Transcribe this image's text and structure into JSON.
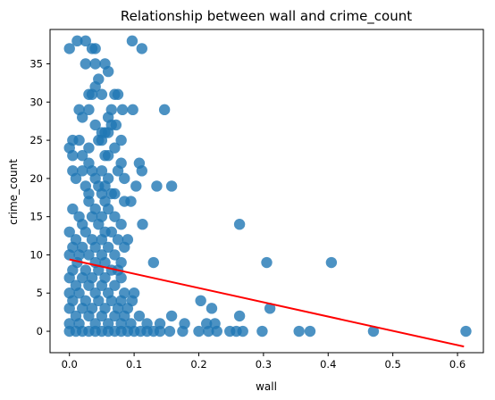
{
  "chart_data": {
    "type": "scatter",
    "title": "Relationship between wall and crime_count",
    "xlabel": "wall",
    "ylabel": "crime_count",
    "xlim": [
      -0.03,
      0.64
    ],
    "ylim": [
      -2.8,
      39.5
    ],
    "xticks": [
      0.0,
      0.1,
      0.2,
      0.3,
      0.4,
      0.5,
      0.6
    ],
    "xtick_labels": [
      "0.0",
      "0.1",
      "0.2",
      "0.3",
      "0.4",
      "0.5",
      "0.6"
    ],
    "yticks": [
      0,
      5,
      10,
      15,
      20,
      25,
      30,
      35
    ],
    "ytick_labels": [
      "0",
      "5",
      "10",
      "15",
      "20",
      "25",
      "30",
      "35"
    ],
    "grid": false,
    "legend": "none",
    "point_color": "#1f77b4",
    "line_color": "#ff0000",
    "regression_line": {
      "x": [
        0.0,
        0.61
      ],
      "y": [
        9.4,
        -2.0
      ]
    },
    "points": [
      {
        "x": 0.0,
        "y": 37
      },
      {
        "x": 0.012,
        "y": 38
      },
      {
        "x": 0.025,
        "y": 38
      },
      {
        "x": 0.035,
        "y": 37
      },
      {
        "x": 0.04,
        "y": 37
      },
      {
        "x": 0.097,
        "y": 38
      },
      {
        "x": 0.112,
        "y": 37
      },
      {
        "x": 0.025,
        "y": 35
      },
      {
        "x": 0.04,
        "y": 35
      },
      {
        "x": 0.055,
        "y": 35
      },
      {
        "x": 0.06,
        "y": 34
      },
      {
        "x": 0.045,
        "y": 33
      },
      {
        "x": 0.04,
        "y": 32
      },
      {
        "x": 0.03,
        "y": 31
      },
      {
        "x": 0.035,
        "y": 31
      },
      {
        "x": 0.05,
        "y": 31
      },
      {
        "x": 0.07,
        "y": 31
      },
      {
        "x": 0.075,
        "y": 31
      },
      {
        "x": 0.015,
        "y": 29
      },
      {
        "x": 0.03,
        "y": 29
      },
      {
        "x": 0.065,
        "y": 29
      },
      {
        "x": 0.082,
        "y": 29
      },
      {
        "x": 0.098,
        "y": 29
      },
      {
        "x": 0.147,
        "y": 29
      },
      {
        "x": 0.02,
        "y": 28
      },
      {
        "x": 0.06,
        "y": 28
      },
      {
        "x": 0.04,
        "y": 27
      },
      {
        "x": 0.065,
        "y": 27
      },
      {
        "x": 0.072,
        "y": 27
      },
      {
        "x": 0.05,
        "y": 26
      },
      {
        "x": 0.055,
        "y": 26
      },
      {
        "x": 0.06,
        "y": 26
      },
      {
        "x": 0.005,
        "y": 25
      },
      {
        "x": 0.015,
        "y": 25
      },
      {
        "x": 0.045,
        "y": 25
      },
      {
        "x": 0.05,
        "y": 25
      },
      {
        "x": 0.08,
        "y": 25
      },
      {
        "x": 0.0,
        "y": 24
      },
      {
        "x": 0.03,
        "y": 24
      },
      {
        "x": 0.07,
        "y": 24
      },
      {
        "x": 0.005,
        "y": 23
      },
      {
        "x": 0.02,
        "y": 23
      },
      {
        "x": 0.055,
        "y": 23
      },
      {
        "x": 0.06,
        "y": 23
      },
      {
        "x": 0.03,
        "y": 22
      },
      {
        "x": 0.08,
        "y": 22
      },
      {
        "x": 0.108,
        "y": 22
      },
      {
        "x": 0.005,
        "y": 21
      },
      {
        "x": 0.02,
        "y": 21
      },
      {
        "x": 0.035,
        "y": 21
      },
      {
        "x": 0.05,
        "y": 21
      },
      {
        "x": 0.075,
        "y": 21
      },
      {
        "x": 0.112,
        "y": 21
      },
      {
        "x": 0.01,
        "y": 20
      },
      {
        "x": 0.04,
        "y": 20
      },
      {
        "x": 0.06,
        "y": 20
      },
      {
        "x": 0.085,
        "y": 20
      },
      {
        "x": 0.025,
        "y": 19
      },
      {
        "x": 0.045,
        "y": 19
      },
      {
        "x": 0.055,
        "y": 19
      },
      {
        "x": 0.103,
        "y": 19
      },
      {
        "x": 0.135,
        "y": 19
      },
      {
        "x": 0.158,
        "y": 19
      },
      {
        "x": 0.03,
        "y": 18
      },
      {
        "x": 0.05,
        "y": 18
      },
      {
        "x": 0.065,
        "y": 18
      },
      {
        "x": 0.07,
        "y": 18
      },
      {
        "x": 0.03,
        "y": 17
      },
      {
        "x": 0.055,
        "y": 17
      },
      {
        "x": 0.085,
        "y": 17
      },
      {
        "x": 0.095,
        "y": 17
      },
      {
        "x": 0.005,
        "y": 16
      },
      {
        "x": 0.04,
        "y": 16
      },
      {
        "x": 0.06,
        "y": 16
      },
      {
        "x": 0.015,
        "y": 15
      },
      {
        "x": 0.035,
        "y": 15
      },
      {
        "x": 0.05,
        "y": 15
      },
      {
        "x": 0.07,
        "y": 15
      },
      {
        "x": 0.02,
        "y": 14
      },
      {
        "x": 0.045,
        "y": 14
      },
      {
        "x": 0.08,
        "y": 14
      },
      {
        "x": 0.113,
        "y": 14
      },
      {
        "x": 0.263,
        "y": 14
      },
      {
        "x": 0.0,
        "y": 13
      },
      {
        "x": 0.025,
        "y": 13
      },
      {
        "x": 0.055,
        "y": 13
      },
      {
        "x": 0.065,
        "y": 13
      },
      {
        "x": 0.01,
        "y": 12
      },
      {
        "x": 0.035,
        "y": 12
      },
      {
        "x": 0.05,
        "y": 12
      },
      {
        "x": 0.075,
        "y": 12
      },
      {
        "x": 0.09,
        "y": 12
      },
      {
        "x": 0.005,
        "y": 11
      },
      {
        "x": 0.02,
        "y": 11
      },
      {
        "x": 0.04,
        "y": 11
      },
      {
        "x": 0.06,
        "y": 11
      },
      {
        "x": 0.085,
        "y": 11
      },
      {
        "x": 0.0,
        "y": 10
      },
      {
        "x": 0.015,
        "y": 10
      },
      {
        "x": 0.03,
        "y": 10
      },
      {
        "x": 0.05,
        "y": 10
      },
      {
        "x": 0.07,
        "y": 10
      },
      {
        "x": 0.012,
        "y": 9
      },
      {
        "x": 0.04,
        "y": 9
      },
      {
        "x": 0.055,
        "y": 9
      },
      {
        "x": 0.08,
        "y": 9
      },
      {
        "x": 0.13,
        "y": 9
      },
      {
        "x": 0.305,
        "y": 9
      },
      {
        "x": 0.405,
        "y": 9
      },
      {
        "x": 0.005,
        "y": 8
      },
      {
        "x": 0.025,
        "y": 8
      },
      {
        "x": 0.045,
        "y": 8
      },
      {
        "x": 0.065,
        "y": 8
      },
      {
        "x": 0.075,
        "y": 8
      },
      {
        "x": 0.0,
        "y": 7
      },
      {
        "x": 0.02,
        "y": 7
      },
      {
        "x": 0.035,
        "y": 7
      },
      {
        "x": 0.055,
        "y": 7
      },
      {
        "x": 0.08,
        "y": 7
      },
      {
        "x": 0.01,
        "y": 6
      },
      {
        "x": 0.03,
        "y": 6
      },
      {
        "x": 0.05,
        "y": 6
      },
      {
        "x": 0.07,
        "y": 6
      },
      {
        "x": 0.0,
        "y": 5
      },
      {
        "x": 0.015,
        "y": 5
      },
      {
        "x": 0.04,
        "y": 5
      },
      {
        "x": 0.06,
        "y": 5
      },
      {
        "x": 0.085,
        "y": 5
      },
      {
        "x": 0.1,
        "y": 5
      },
      {
        "x": 0.005,
        "y": 4
      },
      {
        "x": 0.025,
        "y": 4
      },
      {
        "x": 0.045,
        "y": 4
      },
      {
        "x": 0.065,
        "y": 4
      },
      {
        "x": 0.08,
        "y": 4
      },
      {
        "x": 0.097,
        "y": 4
      },
      {
        "x": 0.203,
        "y": 4
      },
      {
        "x": 0.0,
        "y": 3
      },
      {
        "x": 0.02,
        "y": 3
      },
      {
        "x": 0.035,
        "y": 3
      },
      {
        "x": 0.055,
        "y": 3
      },
      {
        "x": 0.075,
        "y": 3
      },
      {
        "x": 0.09,
        "y": 3
      },
      {
        "x": 0.22,
        "y": 3
      },
      {
        "x": 0.31,
        "y": 3
      },
      {
        "x": 0.01,
        "y": 2
      },
      {
        "x": 0.03,
        "y": 2
      },
      {
        "x": 0.05,
        "y": 2
      },
      {
        "x": 0.07,
        "y": 2
      },
      {
        "x": 0.085,
        "y": 2
      },
      {
        "x": 0.108,
        "y": 2
      },
      {
        "x": 0.158,
        "y": 2
      },
      {
        "x": 0.263,
        "y": 2
      },
      {
        "x": 0.0,
        "y": 1
      },
      {
        "x": 0.015,
        "y": 1
      },
      {
        "x": 0.04,
        "y": 1
      },
      {
        "x": 0.06,
        "y": 1
      },
      {
        "x": 0.08,
        "y": 1
      },
      {
        "x": 0.095,
        "y": 1
      },
      {
        "x": 0.12,
        "y": 1
      },
      {
        "x": 0.14,
        "y": 1
      },
      {
        "x": 0.178,
        "y": 1
      },
      {
        "x": 0.212,
        "y": 1
      },
      {
        "x": 0.225,
        "y": 1
      },
      {
        "x": 0.0,
        "y": 0
      },
      {
        "x": 0.01,
        "y": 0
      },
      {
        "x": 0.02,
        "y": 0
      },
      {
        "x": 0.03,
        "y": 0
      },
      {
        "x": 0.04,
        "y": 0
      },
      {
        "x": 0.05,
        "y": 0
      },
      {
        "x": 0.06,
        "y": 0
      },
      {
        "x": 0.07,
        "y": 0
      },
      {
        "x": 0.08,
        "y": 0
      },
      {
        "x": 0.09,
        "y": 0
      },
      {
        "x": 0.1,
        "y": 0
      },
      {
        "x": 0.11,
        "y": 0
      },
      {
        "x": 0.12,
        "y": 0
      },
      {
        "x": 0.13,
        "y": 0
      },
      {
        "x": 0.14,
        "y": 0
      },
      {
        "x": 0.155,
        "y": 0
      },
      {
        "x": 0.175,
        "y": 0
      },
      {
        "x": 0.2,
        "y": 0
      },
      {
        "x": 0.215,
        "y": 0
      },
      {
        "x": 0.228,
        "y": 0
      },
      {
        "x": 0.248,
        "y": 0
      },
      {
        "x": 0.258,
        "y": 0
      },
      {
        "x": 0.268,
        "y": 0
      },
      {
        "x": 0.298,
        "y": 0
      },
      {
        "x": 0.355,
        "y": 0
      },
      {
        "x": 0.372,
        "y": 0
      },
      {
        "x": 0.47,
        "y": 0
      },
      {
        "x": 0.613,
        "y": 0
      }
    ]
  }
}
